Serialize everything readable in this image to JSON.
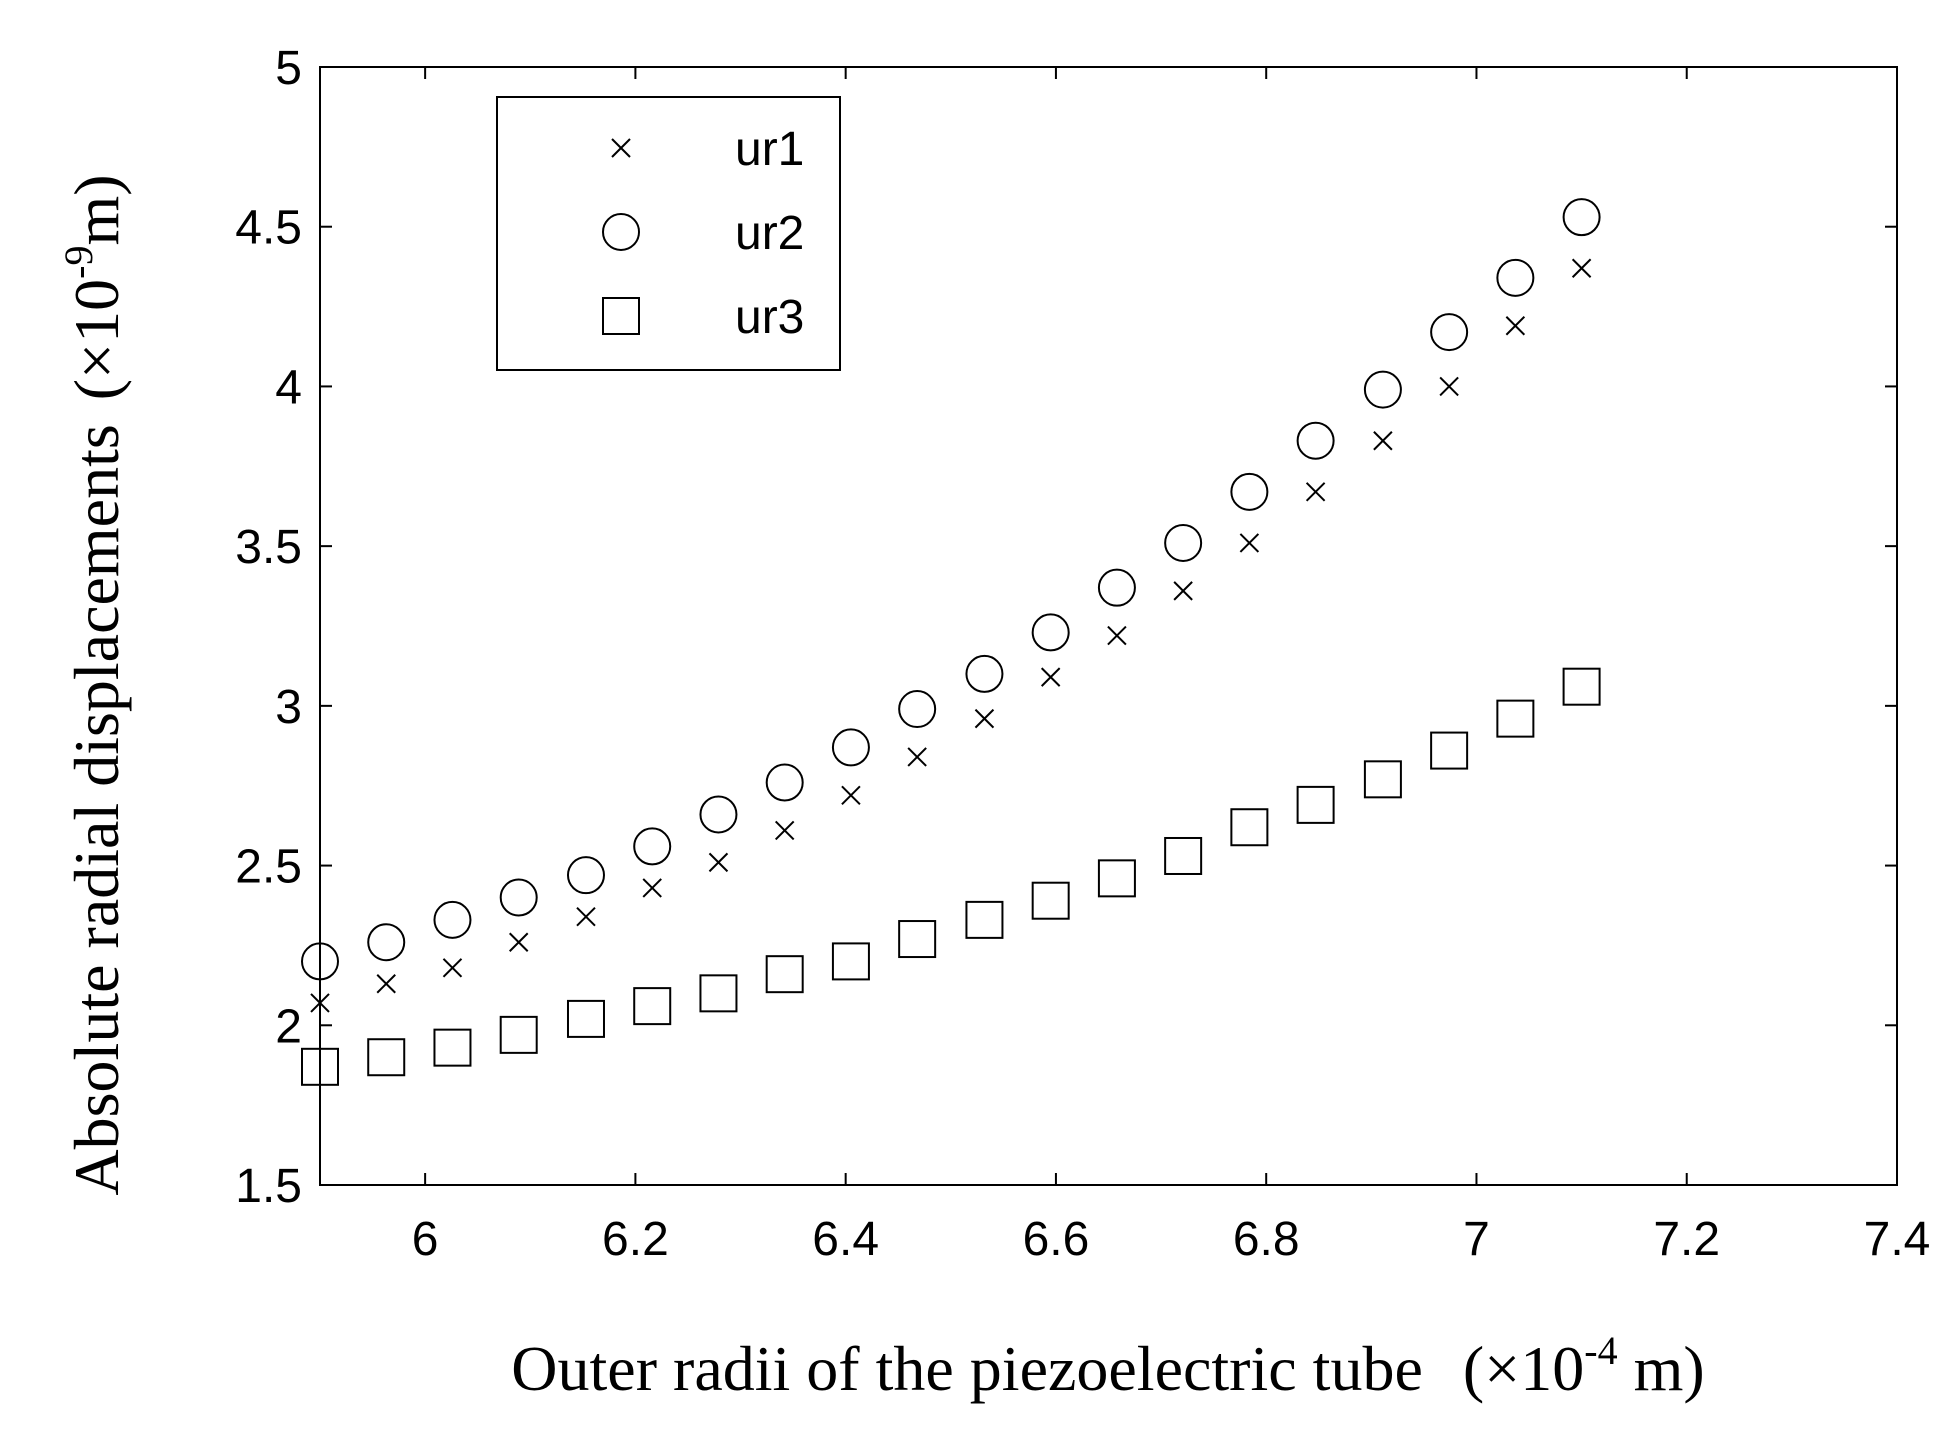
{
  "chart_data": {
    "type": "scatter",
    "title": "",
    "xlabel": {
      "prefix": "Outer radii of the piezoelectric tube",
      "unit_open": "(×10",
      "unit_exp": "-4",
      "unit_close": " m)"
    },
    "ylabel": {
      "prefix": "Absolute radial displacements",
      "unit_open": "(×10",
      "unit_exp": "-9",
      "unit_close": "m)"
    },
    "xlim": [
      5.9,
      7.4
    ],
    "ylim": [
      1.5,
      5
    ],
    "xticks": [
      "6",
      "6.2",
      "6.4",
      "6.6",
      "6.8",
      "7",
      "7.2",
      "7.4"
    ],
    "yticks": [
      "1.5",
      "2",
      "2.5",
      "3",
      "3.5",
      "4",
      "4.5",
      "5"
    ],
    "grid": false,
    "legend_position": "top-left",
    "x": [
      5.9,
      5.963,
      6.026,
      6.089,
      6.153,
      6.216,
      6.279,
      6.342,
      6.405,
      6.468,
      6.532,
      6.595,
      6.658,
      6.721,
      6.784,
      6.847,
      6.911,
      6.974,
      7.037,
      7.1
    ],
    "series": [
      {
        "name": "ur1",
        "marker": "x",
        "values": [
          2.07,
          2.13,
          2.18,
          2.26,
          2.34,
          2.43,
          2.51,
          2.61,
          2.72,
          2.84,
          2.96,
          3.09,
          3.22,
          3.36,
          3.51,
          3.67,
          3.83,
          4.0,
          4.19,
          4.37
        ]
      },
      {
        "name": "ur2",
        "marker": "circle",
        "values": [
          2.2,
          2.26,
          2.33,
          2.4,
          2.47,
          2.56,
          2.66,
          2.76,
          2.87,
          2.99,
          3.1,
          3.23,
          3.37,
          3.51,
          3.67,
          3.83,
          3.99,
          4.17,
          4.34,
          4.53
        ]
      },
      {
        "name": "ur3",
        "marker": "square",
        "values": [
          1.87,
          1.9,
          1.93,
          1.97,
          2.02,
          2.06,
          2.1,
          2.16,
          2.2,
          2.27,
          2.33,
          2.39,
          2.46,
          2.53,
          2.62,
          2.69,
          2.77,
          2.86,
          2.96,
          3.06
        ]
      }
    ]
  }
}
